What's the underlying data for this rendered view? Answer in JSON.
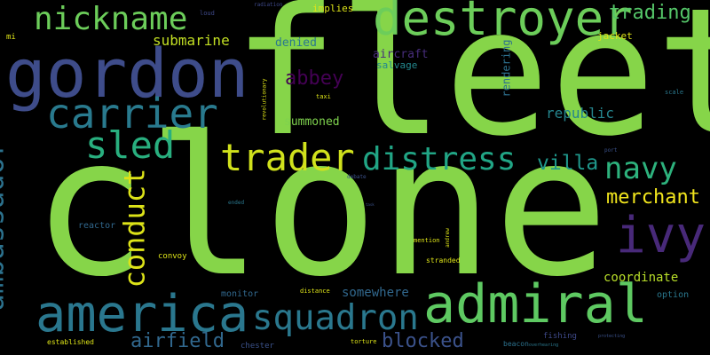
{
  "words": [
    {
      "text": "clone",
      "color": "#86d549"
    },
    {
      "text": "fleet",
      "color": "#86d549"
    },
    {
      "text": "gordon",
      "color": "#3e4c8a"
    },
    {
      "text": "destroyer",
      "color": "#6ccd5a"
    },
    {
      "text": "admiral",
      "color": "#5ec962"
    },
    {
      "text": "america",
      "color": "#2a778e"
    },
    {
      "text": "nickname",
      "color": "#6ccd5a"
    },
    {
      "text": "carrier",
      "color": "#297a8e"
    },
    {
      "text": "ivy",
      "color": "#482979"
    },
    {
      "text": "squadron",
      "color": "#2a788e"
    },
    {
      "text": "ambassador",
      "color": "#2c728e"
    },
    {
      "text": "sled",
      "color": "#29af7f"
    },
    {
      "text": "trader",
      "color": "#d0e11c"
    },
    {
      "text": "distress",
      "color": "#21a585"
    },
    {
      "text": "conduct",
      "color": "#dde318"
    },
    {
      "text": "navy",
      "color": "#2db27d"
    },
    {
      "text": "trading",
      "color": "#54c568"
    },
    {
      "text": "villa",
      "color": "#1f978b"
    },
    {
      "text": "merchant",
      "color": "#f1e51d"
    },
    {
      "text": "airfield",
      "color": "#31688e"
    },
    {
      "text": "blocked",
      "color": "#3b528b"
    },
    {
      "text": "abbey",
      "color": "#440154"
    },
    {
      "text": "submarine",
      "color": "#c2df23"
    },
    {
      "text": "republic",
      "color": "#25858e"
    },
    {
      "text": "coordinate",
      "color": "#b8de29"
    },
    {
      "text": "somewhere",
      "color": "#31688e"
    },
    {
      "text": "summoned",
      "color": "#7fd34e"
    },
    {
      "text": "denied",
      "color": "#2a788e"
    },
    {
      "text": "aircraft",
      "color": "#472d7b"
    },
    {
      "text": "salvage",
      "color": "#23888e"
    },
    {
      "text": "rendering",
      "color": "#2d708e"
    },
    {
      "text": "implies",
      "color": "#dde318"
    },
    {
      "text": "jacket",
      "color": "#dde318"
    },
    {
      "text": "monitor",
      "color": "#31688e"
    },
    {
      "text": "option",
      "color": "#2a788e"
    },
    {
      "text": "reactor",
      "color": "#31688e"
    },
    {
      "text": "convoy",
      "color": "#dde318"
    },
    {
      "text": "fishing",
      "color": "#3e4989"
    },
    {
      "text": "chester",
      "color": "#3b528b"
    },
    {
      "text": "beacon",
      "color": "#2c728e"
    },
    {
      "text": "stranded",
      "color": "#dde318"
    },
    {
      "text": "established",
      "color": "#dde318"
    },
    {
      "text": "mention",
      "color": "#dde318"
    },
    {
      "text": "distance",
      "color": "#dde318"
    },
    {
      "text": "torture",
      "color": "#dde318"
    },
    {
      "text": "scale",
      "color": "#2a788e"
    },
    {
      "text": "loud",
      "color": "#3e4989"
    },
    {
      "text": "radiation",
      "color": "#3e4989"
    },
    {
      "text": "mi",
      "color": "#dde318"
    },
    {
      "text": "taxi",
      "color": "#dde318"
    },
    {
      "text": "revolutionary",
      "color": "#dde318"
    },
    {
      "text": "andrew",
      "color": "#dde318"
    },
    {
      "text": "port",
      "color": "#3b528b"
    },
    {
      "text": "debate",
      "color": "#3b528b"
    },
    {
      "text": "ended",
      "color": "#2a788e"
    },
    {
      "text": "protecting",
      "color": "#3b528b"
    },
    {
      "text": "overhearing",
      "color": "#2a788e"
    },
    {
      "text": "task",
      "color": "#3b528b"
    }
  ]
}
